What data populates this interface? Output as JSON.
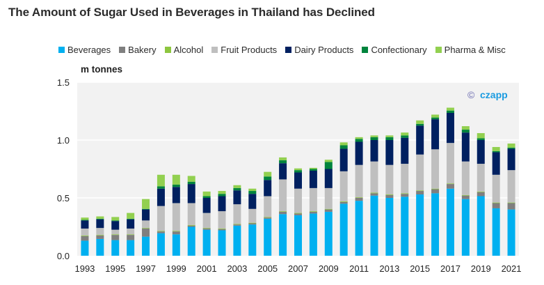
{
  "chart_data": {
    "type": "bar",
    "stacked": true,
    "title": "The Amount of Sugar Used in Beverages in Thailand has Declined",
    "xlabel": "",
    "ylabel": "m tonnes",
    "ylim": [
      0,
      1.5
    ],
    "yticks": [
      "0.0",
      "0.5",
      "1.0",
      "1.5"
    ],
    "ytick_values": [
      0,
      0.5,
      1.0,
      1.5
    ],
    "grid": true,
    "legend_position": "top",
    "watermark": {
      "symbol": "©",
      "text": "czapp"
    },
    "categories": [
      "1993",
      "1994",
      "1995",
      "1996",
      "1997",
      "1998",
      "1999",
      "2000",
      "2001",
      "2002",
      "2003",
      "2004",
      "2005",
      "2006",
      "2007",
      "2008",
      "2009",
      "2010",
      "2011",
      "2012",
      "2013",
      "2014",
      "2015",
      "2016",
      "2017",
      "2018",
      "2019",
      "2020",
      "2021"
    ],
    "xtick_labels": [
      "1993",
      "1995",
      "1997",
      "1999",
      "2001",
      "2003",
      "2005",
      "2007",
      "2009",
      "2011",
      "2013",
      "2015",
      "2017",
      "2019",
      "2021"
    ],
    "series": [
      {
        "name": "Beverages",
        "color": "#00b0f0",
        "values": [
          0.13,
          0.145,
          0.135,
          0.135,
          0.165,
          0.195,
          0.185,
          0.25,
          0.225,
          0.22,
          0.26,
          0.27,
          0.32,
          0.36,
          0.35,
          0.365,
          0.38,
          0.45,
          0.475,
          0.52,
          0.5,
          0.51,
          0.53,
          0.54,
          0.58,
          0.49,
          0.515,
          0.41,
          0.4
        ]
      },
      {
        "name": "Bakery",
        "color": "#7f7f7f",
        "values": [
          0.04,
          0.03,
          0.045,
          0.045,
          0.07,
          0.015,
          0.025,
          0.01,
          0.01,
          0.01,
          0.01,
          0.01,
          0.01,
          0.02,
          0.015,
          0.015,
          0.02,
          0.015,
          0.025,
          0.02,
          0.025,
          0.025,
          0.03,
          0.035,
          0.04,
          0.03,
          0.035,
          0.045,
          0.055
        ]
      },
      {
        "name": "Alcohol",
        "color": "#8dc63f",
        "values": [
          0.005,
          0.005,
          0.005,
          0.005,
          0.005,
          0.005,
          0.005,
          0.005,
          0.005,
          0.005,
          0.005,
          0.005,
          0.005,
          0.005,
          0.005,
          0.005,
          0.005,
          0.005,
          0.005,
          0.005,
          0.005,
          0.005,
          0.005,
          0.005,
          0.005,
          0.005,
          0.005,
          0.005,
          0.005
        ]
      },
      {
        "name": "Fruit Products",
        "color": "#bfbfbf",
        "values": [
          0.06,
          0.06,
          0.04,
          0.05,
          0.065,
          0.215,
          0.24,
          0.19,
          0.13,
          0.15,
          0.17,
          0.12,
          0.18,
          0.275,
          0.21,
          0.2,
          0.18,
          0.26,
          0.28,
          0.27,
          0.255,
          0.255,
          0.31,
          0.34,
          0.35,
          0.29,
          0.24,
          0.24,
          0.28
        ]
      },
      {
        "name": "Dairy Products",
        "color": "#002060",
        "values": [
          0.07,
          0.075,
          0.075,
          0.08,
          0.095,
          0.15,
          0.14,
          0.165,
          0.13,
          0.13,
          0.12,
          0.13,
          0.14,
          0.14,
          0.14,
          0.15,
          0.165,
          0.195,
          0.2,
          0.185,
          0.215,
          0.225,
          0.25,
          0.26,
          0.26,
          0.25,
          0.205,
          0.195,
          0.185
        ]
      },
      {
        "name": "Confectionary",
        "color": "#00843d",
        "values": [
          0.005,
          0.005,
          0.005,
          0.005,
          0.005,
          0.02,
          0.02,
          0.02,
          0.015,
          0.02,
          0.02,
          0.025,
          0.03,
          0.025,
          0.02,
          0.015,
          0.06,
          0.03,
          0.025,
          0.025,
          0.025,
          0.02,
          0.015,
          0.015,
          0.02,
          0.025,
          0.015,
          0.01,
          0.01
        ]
      },
      {
        "name": "Pharma & Misc",
        "color": "#92d050",
        "values": [
          0.02,
          0.02,
          0.03,
          0.05,
          0.085,
          0.1,
          0.085,
          0.05,
          0.04,
          0.025,
          0.025,
          0.02,
          0.04,
          0.025,
          0.015,
          0.01,
          0.02,
          0.025,
          0.015,
          0.015,
          0.015,
          0.025,
          0.03,
          0.025,
          0.025,
          0.03,
          0.045,
          0.035,
          0.035
        ]
      }
    ]
  }
}
